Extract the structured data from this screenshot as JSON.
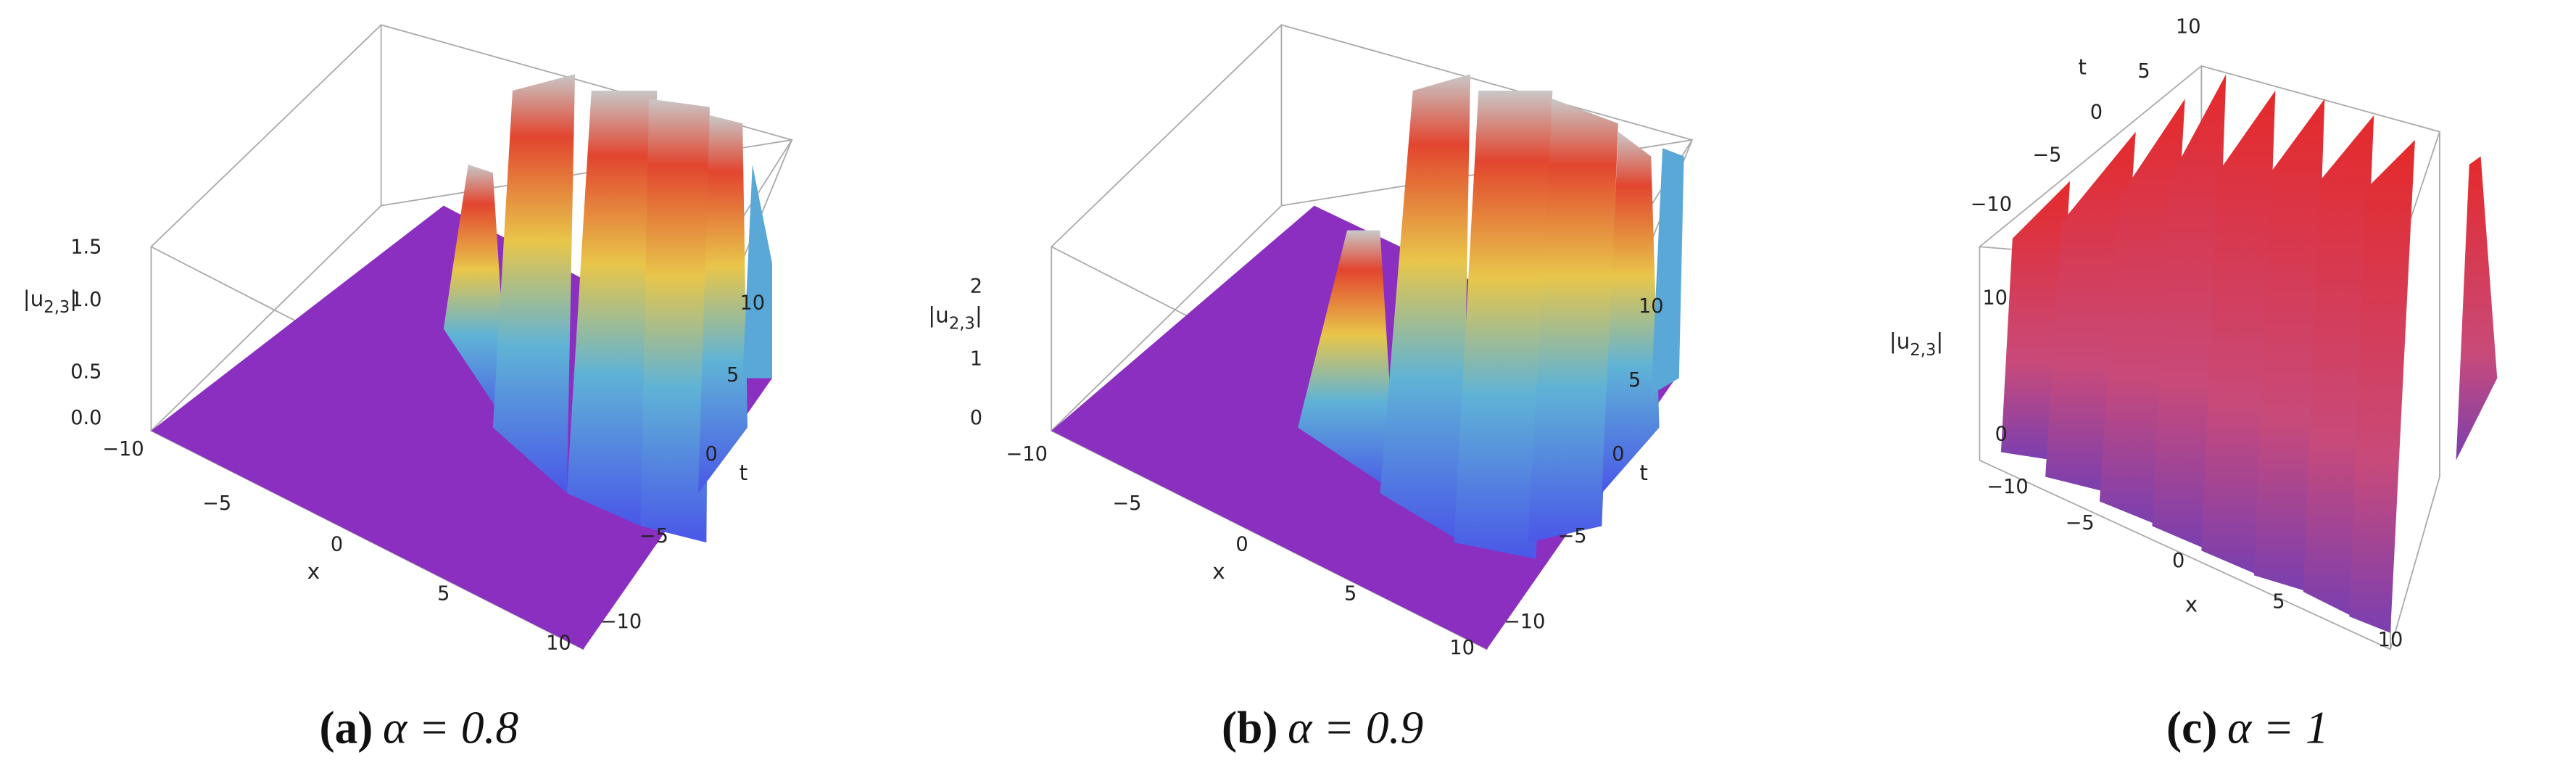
{
  "panels": [
    {
      "caption_label": "(a)",
      "caption_text": "α = 0.8",
      "z_label": [
        "|u",
        "2,3",
        "|"
      ],
      "x_label": "x",
      "t_label": "t",
      "x_ticks": [
        "−10",
        "−5",
        "0",
        "5",
        "10"
      ],
      "t_ticks": [
        "−10",
        "−5",
        "0",
        "5",
        "10"
      ],
      "z_ticks": [
        "0.0",
        "0.5",
        "1.0",
        "1.5"
      ]
    },
    {
      "caption_label": "(b)",
      "caption_text": "α = 0.9",
      "z_label": [
        "|u",
        "2,3",
        "|"
      ],
      "x_label": "x",
      "t_label": "t",
      "x_ticks": [
        "−10",
        "−5",
        "0",
        "5",
        "10"
      ],
      "t_ticks": [
        "−10",
        "−5",
        "0",
        "5",
        "10"
      ],
      "z_ticks": [
        "0",
        "1",
        "2"
      ]
    },
    {
      "caption_label": "(c)",
      "caption_text": "α = 1",
      "z_label": [
        "|u",
        "2,3",
        "|"
      ],
      "x_label": "x",
      "t_label": "t",
      "x_ticks": [
        "−10",
        "−5",
        "0",
        "5",
        "10"
      ],
      "t_ticks": [
        "−10",
        "−5",
        "0",
        "5",
        "10"
      ],
      "z_ticks": [
        "0",
        "10"
      ]
    }
  ]
}
